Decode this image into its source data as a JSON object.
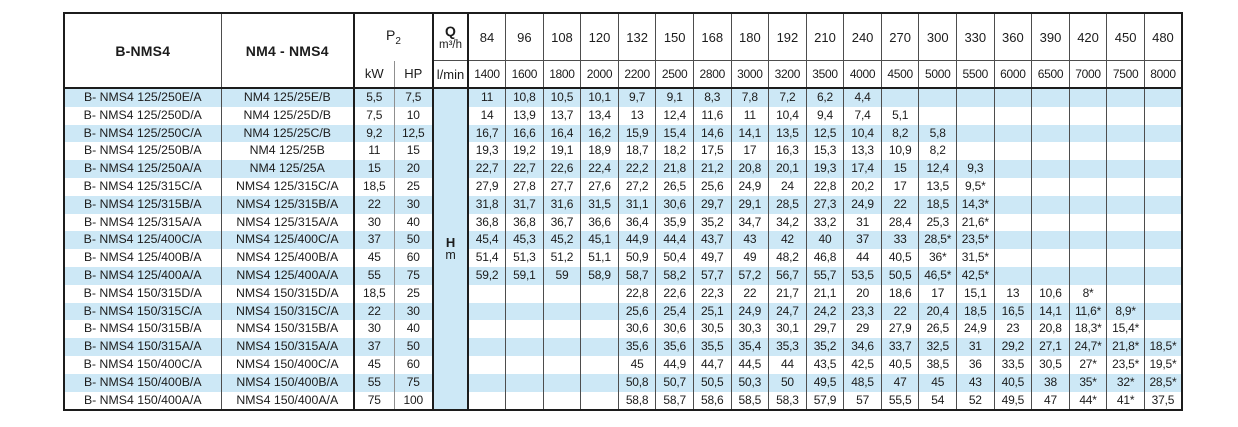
{
  "table": {
    "header": {
      "col1": "B-NMS4",
      "col2": "NM4 - NMS4",
      "p2_label": "P",
      "p2_sub": "2",
      "kw": "kW",
      "hp": "HP",
      "q_label": "Q",
      "q_unit": "m³/h",
      "lmin": "l/min",
      "flow_m3h": [
        "84",
        "96",
        "108",
        "120",
        "132",
        "150",
        "168",
        "180",
        "192",
        "210",
        "240",
        "270",
        "300",
        "330",
        "360",
        "390",
        "420",
        "450",
        "480"
      ],
      "flow_lmin": [
        "1400",
        "1600",
        "1800",
        "2000",
        "2200",
        "2500",
        "2800",
        "3000",
        "3200",
        "3500",
        "4000",
        "4500",
        "5000",
        "5500",
        "6000",
        "6500",
        "7000",
        "7500",
        "8000"
      ]
    },
    "hm": {
      "h": "H",
      "m": "m"
    },
    "rows": [
      {
        "c1": "B- NMS4 125/250E/A",
        "c2": "NM4 125/25E/B",
        "kw": "5,5",
        "hp": "7,5",
        "v": [
          "11",
          "10,8",
          "10,5",
          "10,1",
          "9,7",
          "9,1",
          "8,3",
          "7,8",
          "7,2",
          "6,2",
          "4,4",
          "",
          "",
          "",
          "",
          "",
          "",
          "",
          ""
        ]
      },
      {
        "c1": "B- NMS4 125/250D/A",
        "c2": "NM4 125/25D/B",
        "kw": "7,5",
        "hp": "10",
        "v": [
          "14",
          "13,9",
          "13,7",
          "13,4",
          "13",
          "12,4",
          "11,6",
          "11",
          "10,4",
          "9,4",
          "7,4",
          "5,1",
          "",
          "",
          "",
          "",
          "",
          "",
          ""
        ]
      },
      {
        "c1": "B- NMS4 125/250C/A",
        "c2": "NM4 125/25C/B",
        "kw": "9,2",
        "hp": "12,5",
        "v": [
          "16,7",
          "16,6",
          "16,4",
          "16,2",
          "15,9",
          "15,4",
          "14,6",
          "14,1",
          "13,5",
          "12,5",
          "10,4",
          "8,2",
          "5,8",
          "",
          "",
          "",
          "",
          "",
          ""
        ]
      },
      {
        "c1": "B- NMS4 125/250B/A",
        "c2": "NM4 125/25B",
        "kw": "11",
        "hp": "15",
        "v": [
          "19,3",
          "19,2",
          "19,1",
          "18,9",
          "18,7",
          "18,2",
          "17,5",
          "17",
          "16,3",
          "15,3",
          "13,3",
          "10,9",
          "8,2",
          "",
          "",
          "",
          "",
          "",
          ""
        ]
      },
      {
        "c1": "B- NMS4 125/250A/A",
        "c2": "NM4 125/25A",
        "kw": "15",
        "hp": "20",
        "v": [
          "22,7",
          "22,7",
          "22,6",
          "22,4",
          "22,2",
          "21,8",
          "21,2",
          "20,8",
          "20,1",
          "19,3",
          "17,4",
          "15",
          "12,4",
          "9,3",
          "",
          "",
          "",
          "",
          ""
        ]
      },
      {
        "c1": "B- NMS4 125/315C/A",
        "c2": "NMS4 125/315C/A",
        "kw": "18,5",
        "hp": "25",
        "v": [
          "27,9",
          "27,8",
          "27,7",
          "27,6",
          "27,2",
          "26,5",
          "25,6",
          "24,9",
          "24",
          "22,8",
          "20,2",
          "17",
          "13,5",
          "9,5*",
          "",
          "",
          "",
          "",
          ""
        ]
      },
      {
        "c1": "B- NMS4 125/315B/A",
        "c2": "NMS4 125/315B/A",
        "kw": "22",
        "hp": "30",
        "v": [
          "31,8",
          "31,7",
          "31,6",
          "31,5",
          "31,1",
          "30,6",
          "29,7",
          "29,1",
          "28,5",
          "27,3",
          "24,9",
          "22",
          "18,5",
          "14,3*",
          "",
          "",
          "",
          "",
          ""
        ]
      },
      {
        "c1": "B- NMS4 125/315A/A",
        "c2": "NMS4 125/315A/A",
        "kw": "30",
        "hp": "40",
        "v": [
          "36,8",
          "36,8",
          "36,7",
          "36,6",
          "36,4",
          "35,9",
          "35,2",
          "34,7",
          "34,2",
          "33,2",
          "31",
          "28,4",
          "25,3",
          "21,6*",
          "",
          "",
          "",
          "",
          ""
        ]
      },
      {
        "c1": "B- NMS4 125/400C/A",
        "c2": "NMS4 125/400C/A",
        "kw": "37",
        "hp": "50",
        "v": [
          "45,4",
          "45,3",
          "45,2",
          "45,1",
          "44,9",
          "44,4",
          "43,7",
          "43",
          "42",
          "40",
          "37",
          "33",
          "28,5*",
          "23,5*",
          "",
          "",
          "",
          "",
          ""
        ]
      },
      {
        "c1": "B- NMS4 125/400B/A",
        "c2": "NMS4 125/400B/A",
        "kw": "45",
        "hp": "60",
        "v": [
          "51,4",
          "51,3",
          "51,2",
          "51,1",
          "50,9",
          "50,4",
          "49,7",
          "49",
          "48,2",
          "46,8",
          "44",
          "40,5",
          "36*",
          "31,5*",
          "",
          "",
          "",
          "",
          ""
        ]
      },
      {
        "c1": "B- NMS4 125/400A/A",
        "c2": "NMS4 125/400A/A",
        "kw": "55",
        "hp": "75",
        "v": [
          "59,2",
          "59,1",
          "59",
          "58,9",
          "58,7",
          "58,2",
          "57,7",
          "57,2",
          "56,7",
          "55,7",
          "53,5",
          "50,5",
          "46,5*",
          "42,5*",
          "",
          "",
          "",
          "",
          ""
        ]
      },
      {
        "c1": "B- NMS4 150/315D/A",
        "c2": "NMS4 150/315D/A",
        "kw": "18,5",
        "hp": "25",
        "v": [
          "",
          "",
          "",
          "",
          "22,8",
          "22,6",
          "22,3",
          "22",
          "21,7",
          "21,1",
          "20",
          "18,6",
          "17",
          "15,1",
          "13",
          "10,6",
          "8*",
          "",
          ""
        ]
      },
      {
        "c1": "B- NMS4 150/315C/A",
        "c2": "NMS4 150/315C/A",
        "kw": "22",
        "hp": "30",
        "v": [
          "",
          "",
          "",
          "",
          "25,6",
          "25,4",
          "25,1",
          "24,9",
          "24,7",
          "24,2",
          "23,3",
          "22",
          "20,4",
          "18,5",
          "16,5",
          "14,1",
          "11,6*",
          "8,9*",
          ""
        ]
      },
      {
        "c1": "B- NMS4 150/315B/A",
        "c2": "NMS4 150/315B/A",
        "kw": "30",
        "hp": "40",
        "v": [
          "",
          "",
          "",
          "",
          "30,6",
          "30,6",
          "30,5",
          "30,3",
          "30,1",
          "29,7",
          "29",
          "27,9",
          "26,5",
          "24,9",
          "23",
          "20,8",
          "18,3*",
          "15,4*",
          ""
        ]
      },
      {
        "c1": "B- NMS4 150/315A/A",
        "c2": "NMS4 150/315A/A",
        "kw": "37",
        "hp": "50",
        "v": [
          "",
          "",
          "",
          "",
          "35,6",
          "35,6",
          "35,5",
          "35,4",
          "35,3",
          "35,2",
          "34,6",
          "33,7",
          "32,5",
          "31",
          "29,2",
          "27,1",
          "24,7*",
          "21,8*",
          "18,5*"
        ]
      },
      {
        "c1": "B- NMS4 150/400C/A",
        "c2": "NMS4 150/400C/A",
        "kw": "45",
        "hp": "60",
        "v": [
          "",
          "",
          "",
          "",
          "45",
          "44,9",
          "44,7",
          "44,5",
          "44",
          "43,5",
          "42,5",
          "40,5",
          "38,5",
          "36",
          "33,5",
          "30,5",
          "27*",
          "23,5*",
          "19,5*"
        ]
      },
      {
        "c1": "B- NMS4 150/400B/A",
        "c2": "NMS4 150/400B/A",
        "kw": "55",
        "hp": "75",
        "v": [
          "",
          "",
          "",
          "",
          "50,8",
          "50,7",
          "50,5",
          "50,3",
          "50",
          "49,5",
          "48,5",
          "47",
          "45",
          "43",
          "40,5",
          "38",
          "35*",
          "32*",
          "28,5*"
        ]
      },
      {
        "c1": "B- NMS4 150/400A/A",
        "c2": "NMS4 150/400A/A",
        "kw": "75",
        "hp": "100",
        "v": [
          "",
          "",
          "",
          "",
          "58,8",
          "58,7",
          "58,6",
          "58,5",
          "58,3",
          "57,9",
          "57",
          "55,5",
          "54",
          "52",
          "49,5",
          "47",
          "44*",
          "41*",
          "37,5"
        ]
      }
    ],
    "colors": {
      "stripe_blue": "#cde8f6",
      "grid_line": "#4d4d4d",
      "outer_border": "#1c1c1c",
      "background": "#ffffff"
    }
  }
}
